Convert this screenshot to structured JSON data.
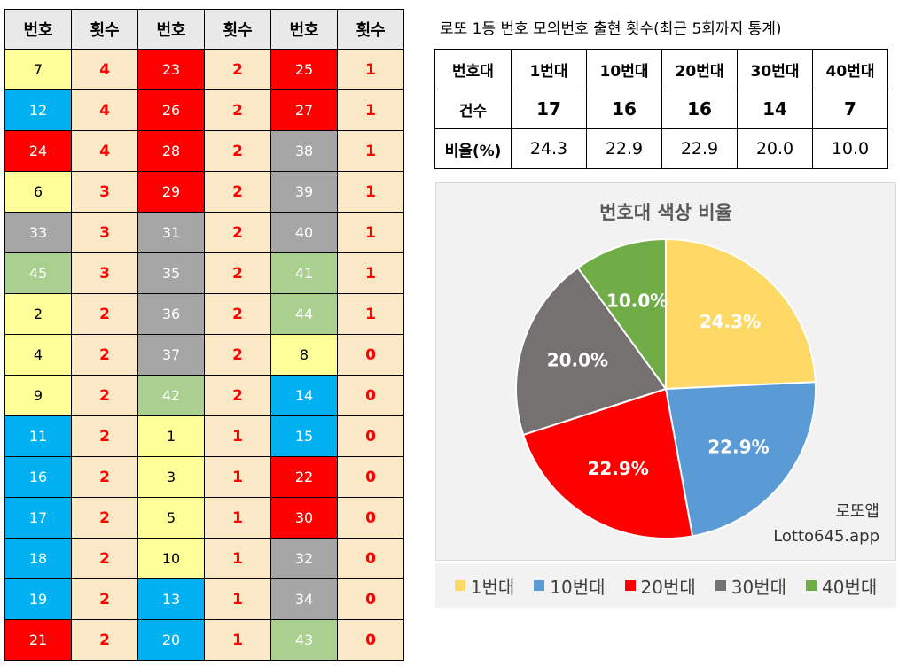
{
  "left_table": {
    "headers": [
      "번호",
      "횟수",
      "번호",
      "횟수",
      "번호",
      "횟수"
    ],
    "rows": [
      [
        {
          "n": "7",
          "c": "yellow"
        },
        {
          "v": "4"
        },
        {
          "n": "23",
          "c": "red"
        },
        {
          "v": "2"
        },
        {
          "n": "25",
          "c": "red"
        },
        {
          "v": "1"
        }
      ],
      [
        {
          "n": "12",
          "c": "blue"
        },
        {
          "v": "4"
        },
        {
          "n": "26",
          "c": "red"
        },
        {
          "v": "2"
        },
        {
          "n": "27",
          "c": "red"
        },
        {
          "v": "1"
        }
      ],
      [
        {
          "n": "24",
          "c": "red"
        },
        {
          "v": "4"
        },
        {
          "n": "28",
          "c": "red"
        },
        {
          "v": "2"
        },
        {
          "n": "38",
          "c": "gray"
        },
        {
          "v": "1"
        }
      ],
      [
        {
          "n": "6",
          "c": "yellow"
        },
        {
          "v": "3"
        },
        {
          "n": "29",
          "c": "red"
        },
        {
          "v": "2"
        },
        {
          "n": "39",
          "c": "gray"
        },
        {
          "v": "1"
        }
      ],
      [
        {
          "n": "33",
          "c": "gray"
        },
        {
          "v": "3"
        },
        {
          "n": "31",
          "c": "gray"
        },
        {
          "v": "2"
        },
        {
          "n": "40",
          "c": "gray"
        },
        {
          "v": "1"
        }
      ],
      [
        {
          "n": "45",
          "c": "green"
        },
        {
          "v": "3"
        },
        {
          "n": "35",
          "c": "gray"
        },
        {
          "v": "2"
        },
        {
          "n": "41",
          "c": "green"
        },
        {
          "v": "1"
        }
      ],
      [
        {
          "n": "2",
          "c": "yellow"
        },
        {
          "v": "2"
        },
        {
          "n": "36",
          "c": "gray"
        },
        {
          "v": "2"
        },
        {
          "n": "44",
          "c": "green"
        },
        {
          "v": "1"
        }
      ],
      [
        {
          "n": "4",
          "c": "yellow"
        },
        {
          "v": "2"
        },
        {
          "n": "37",
          "c": "gray"
        },
        {
          "v": "2"
        },
        {
          "n": "8",
          "c": "yellow"
        },
        {
          "v": "0"
        }
      ],
      [
        {
          "n": "9",
          "c": "yellow"
        },
        {
          "v": "2"
        },
        {
          "n": "42",
          "c": "green"
        },
        {
          "v": "2"
        },
        {
          "n": "14",
          "c": "blue"
        },
        {
          "v": "0"
        }
      ],
      [
        {
          "n": "11",
          "c": "blue"
        },
        {
          "v": "2"
        },
        {
          "n": "1",
          "c": "yellow"
        },
        {
          "v": "1"
        },
        {
          "n": "15",
          "c": "blue"
        },
        {
          "v": "0"
        }
      ],
      [
        {
          "n": "16",
          "c": "blue"
        },
        {
          "v": "2"
        },
        {
          "n": "3",
          "c": "yellow"
        },
        {
          "v": "1"
        },
        {
          "n": "22",
          "c": "red"
        },
        {
          "v": "0"
        }
      ],
      [
        {
          "n": "17",
          "c": "blue"
        },
        {
          "v": "2"
        },
        {
          "n": "5",
          "c": "yellow"
        },
        {
          "v": "1"
        },
        {
          "n": "30",
          "c": "red"
        },
        {
          "v": "0"
        }
      ],
      [
        {
          "n": "18",
          "c": "blue"
        },
        {
          "v": "2"
        },
        {
          "n": "10",
          "c": "yellow"
        },
        {
          "v": "1"
        },
        {
          "n": "32",
          "c": "gray"
        },
        {
          "v": "0"
        }
      ],
      [
        {
          "n": "19",
          "c": "blue"
        },
        {
          "v": "2"
        },
        {
          "n": "13",
          "c": "blue"
        },
        {
          "v": "1"
        },
        {
          "n": "34",
          "c": "gray"
        },
        {
          "v": "0"
        }
      ],
      [
        {
          "n": "21",
          "c": "red"
        },
        {
          "v": "2"
        },
        {
          "n": "20",
          "c": "blue"
        },
        {
          "v": "1"
        },
        {
          "n": "43",
          "c": "green"
        },
        {
          "v": "0"
        }
      ]
    ]
  },
  "ball_colors": {
    "yellow": {
      "bg": "#ffff99",
      "fg": "#000000"
    },
    "blue": {
      "bg": "#00b0f0",
      "fg": "#ffffff"
    },
    "red": {
      "bg": "#ff0000",
      "fg": "#ffffff"
    },
    "gray": {
      "bg": "#a6a6a6",
      "fg": "#ffffff"
    },
    "green": {
      "bg": "#a9d08e",
      "fg": "#ffffff"
    }
  },
  "count_color": "#ff0000",
  "stats": {
    "title": "로또 1등 번호 모의번호 출현 횟수(최근 5회까지 통계)",
    "header": [
      "번호대",
      "1번대",
      "10번대",
      "20번대",
      "30번대",
      "40번대"
    ],
    "count_row": [
      "건수",
      "17",
      "16",
      "16",
      "14",
      "7"
    ],
    "ratio_row": [
      "비율(%)",
      "24.3",
      "22.9",
      "22.9",
      "20.0",
      "10.0"
    ]
  },
  "chart_data": {
    "type": "pie",
    "title": "번호대 색상 비율",
    "categories": [
      "1번대",
      "10번대",
      "20번대",
      "30번대",
      "40번대"
    ],
    "values": [
      24.3,
      22.9,
      22.9,
      20.0,
      10.0
    ],
    "labels": [
      "24.3%",
      "22.9%",
      "22.9%",
      "20.0%",
      "10.0%"
    ],
    "colors": [
      "#ffd966",
      "#5b9bd5",
      "#ff0000",
      "#767171",
      "#70ad47"
    ],
    "legend_position": "bottom",
    "start_angle_deg": 0,
    "direction": "clockwise"
  },
  "watermark": {
    "line1": "로또앱",
    "line2": "Lotto645.app"
  }
}
